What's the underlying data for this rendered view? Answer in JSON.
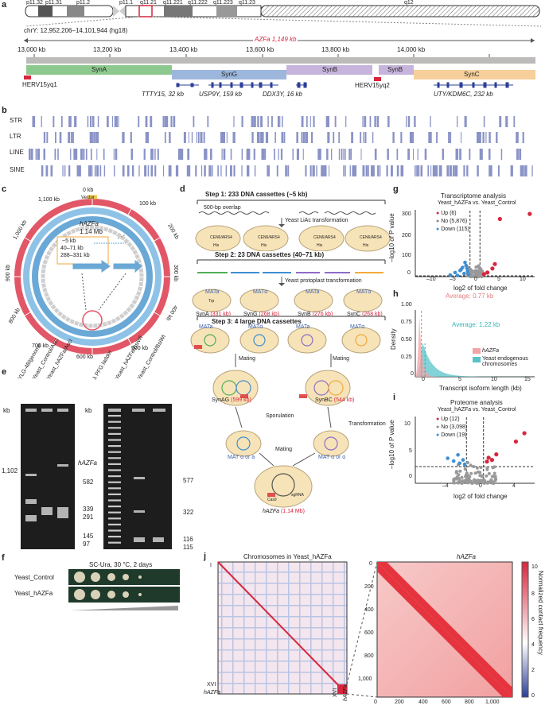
{
  "panels": {
    "a": "a",
    "b": "b",
    "c": "c",
    "d": "d",
    "e": "e",
    "f": "f",
    "g": "g",
    "h": "h",
    "i": "i",
    "j": "j"
  },
  "panel_a": {
    "bands": [
      "p11.32",
      "p11.31",
      "p11.2",
      "p11.1",
      "q11.21",
      "q11.221",
      "q11.222",
      "q11.223",
      "q11.23",
      "q12"
    ],
    "coord_label": "chrY: 12,952,206–14,101,944 (hg18)",
    "azfa_label": "AZFa 1,149 kb",
    "ticks": [
      "13,000 kb",
      "13,200 kb",
      "13,400 kb",
      "13,600 kb",
      "13,800 kb",
      "14,000 kb"
    ],
    "syn_blocks": [
      "SynA",
      "SynG",
      "SynB",
      "SynB",
      "SynC"
    ],
    "herv1": "HERV15yq1",
    "herv2": "HERV15yq2",
    "genes": [
      "TTTY15, 32 kb",
      "USP9Y, 159 kb",
      "DDX3Y, 16 kb",
      "UTY/KDM6C, 232 kb"
    ]
  },
  "panel_b": {
    "rows": [
      "STR",
      "LTR",
      "LINE",
      "SINE"
    ]
  },
  "panel_c": {
    "center_title": "hAZFa",
    "center_size": "1.14 Mb",
    "ticks": [
      "0 kb",
      "100 kb",
      "200 kb",
      "300 kb",
      "400 kb",
      "500 kb",
      "600 kb",
      "700 kb",
      "800 kb",
      "900 kb",
      "1,000 kb",
      "1,100 kb"
    ],
    "vector": "Vector",
    "inset": [
      "~5 kb",
      "40–71 kb",
      "288–331 kb"
    ]
  },
  "panel_d": {
    "step1": "Step 1: 233 DNA cassettes (~5 kb)",
    "overlap": "500-bp overlap",
    "lic": "Yeast LiAc transformation",
    "cen": "CEN6/ARS4",
    "his": "His",
    "step2": "Step 2: 23 DNA cassettes (40–71 kb)",
    "proto": "Yeast protoplast transformation",
    "mat_a": "MATa",
    "mat_alpha": "MATα",
    "syns": [
      {
        "name": "SynA",
        "size": "(331 kb)"
      },
      {
        "name": "SynG",
        "size": "(268 kb)"
      },
      {
        "name": "SynB",
        "size": "(276 kb)"
      },
      {
        "name": "SynC",
        "size": "(268 kb)"
      }
    ],
    "trp": "Trp",
    "step3": "Step 3: 4 large DNA cassettes",
    "mating": "Mating",
    "synag": "SynAG",
    "synag_size": "(599 kb)",
    "synbc": "SynBC",
    "synbc_size": "(544 kb)",
    "sporulation": "Sporulation",
    "transformation": "Transformation",
    "mat_either_1": "MAT α or a",
    "mat_either_2": "MAT α or α",
    "final": "hAZFa",
    "final_size": "(1.14 Mb)",
    "cas9": "Cas9",
    "sgrna": "sgRNA"
  },
  "panel_e": {
    "left_lanes": [
      "YLG-48/genome",
      "Yeast_Control/AscI",
      "Yeast_hAZFa/AscI"
    ],
    "right_lanes": [
      "λ PFG ladder",
      "Yeast_hAZFa/BsiWI",
      "Yeast_Control/BsiWI"
    ],
    "kb": "kb",
    "left_mark": "1,102",
    "left_arrow_label": "hAZFa",
    "ladder_marks": [
      "582",
      "339",
      "291",
      "145",
      "97"
    ],
    "right_marks": [
      "577",
      "322",
      "116",
      "115"
    ]
  },
  "panel_f": {
    "title": "SC-Ura, 30 °C, 2 days",
    "rows": [
      "Yeast_Control",
      "Yeast_hAZFa"
    ]
  },
  "panel_g": {
    "title": "Transcriptome analysis",
    "subtitle": "Yeast_hAZFa vs. Yeast_Control",
    "legend": [
      "Up (6)",
      "No (5,876)",
      "Down (115)"
    ],
    "xlabel": "log2 of fold change",
    "ylabel": "–log10 of P value",
    "xticks": [
      "–10",
      "–5",
      "0",
      "5",
      "10"
    ],
    "yticks": [
      "0",
      "100",
      "200",
      "300"
    ]
  },
  "panel_h": {
    "avg1": "Average: 0.77 kb",
    "avg2": "Average: 1.22 kb",
    "legend": [
      "hAZFa",
      "Yeast endogenous chromosomes"
    ],
    "xlabel": "Transcript isoform length (kb)",
    "ylabel": "Density",
    "xticks": [
      "0",
      "5",
      "10",
      "15"
    ],
    "yticks": [
      "0",
      "0.25",
      "0.50",
      "0.75",
      "1.00"
    ]
  },
  "panel_i": {
    "title": "Proteome analysis",
    "subtitle": "Yeast_hAZFa vs. Yeast_Control",
    "legend": [
      "Up (12)",
      "No (3,098)",
      "Down (19)"
    ],
    "xlabel": "log2 of fold change",
    "ylabel": "–log10 of P value",
    "xticks": [
      "–4",
      "0",
      "4"
    ],
    "yticks": [
      "0",
      "5",
      "10"
    ]
  },
  "panel_j": {
    "title_left": "Chromosomes in Yeast_hAZFa",
    "title_right": "hAZFa",
    "left_labels": [
      "I",
      "XVI",
      "hAZFa"
    ],
    "bottom_labels": [
      "XVI",
      "hAZFa"
    ],
    "xticks": [
      "0",
      "200",
      "400",
      "600",
      "800",
      "1,000"
    ],
    "yticks": [
      "0",
      "200",
      "400",
      "600",
      "800",
      "1,000"
    ],
    "cbar_label": "Normalized contact frequency",
    "cbar_ticks": [
      "0",
      "2",
      "4",
      "6",
      "8",
      "10"
    ]
  },
  "colors": {
    "syna": "#8dc98f",
    "syng": "#9db7dc",
    "synb": "#c7b4dc",
    "sync": "#f6cf9a",
    "red": "#d7263d",
    "blue": "#3e8fd1",
    "navy": "#2c3e99",
    "teal": "#58c4c9",
    "pink": "#f2a3a6"
  }
}
